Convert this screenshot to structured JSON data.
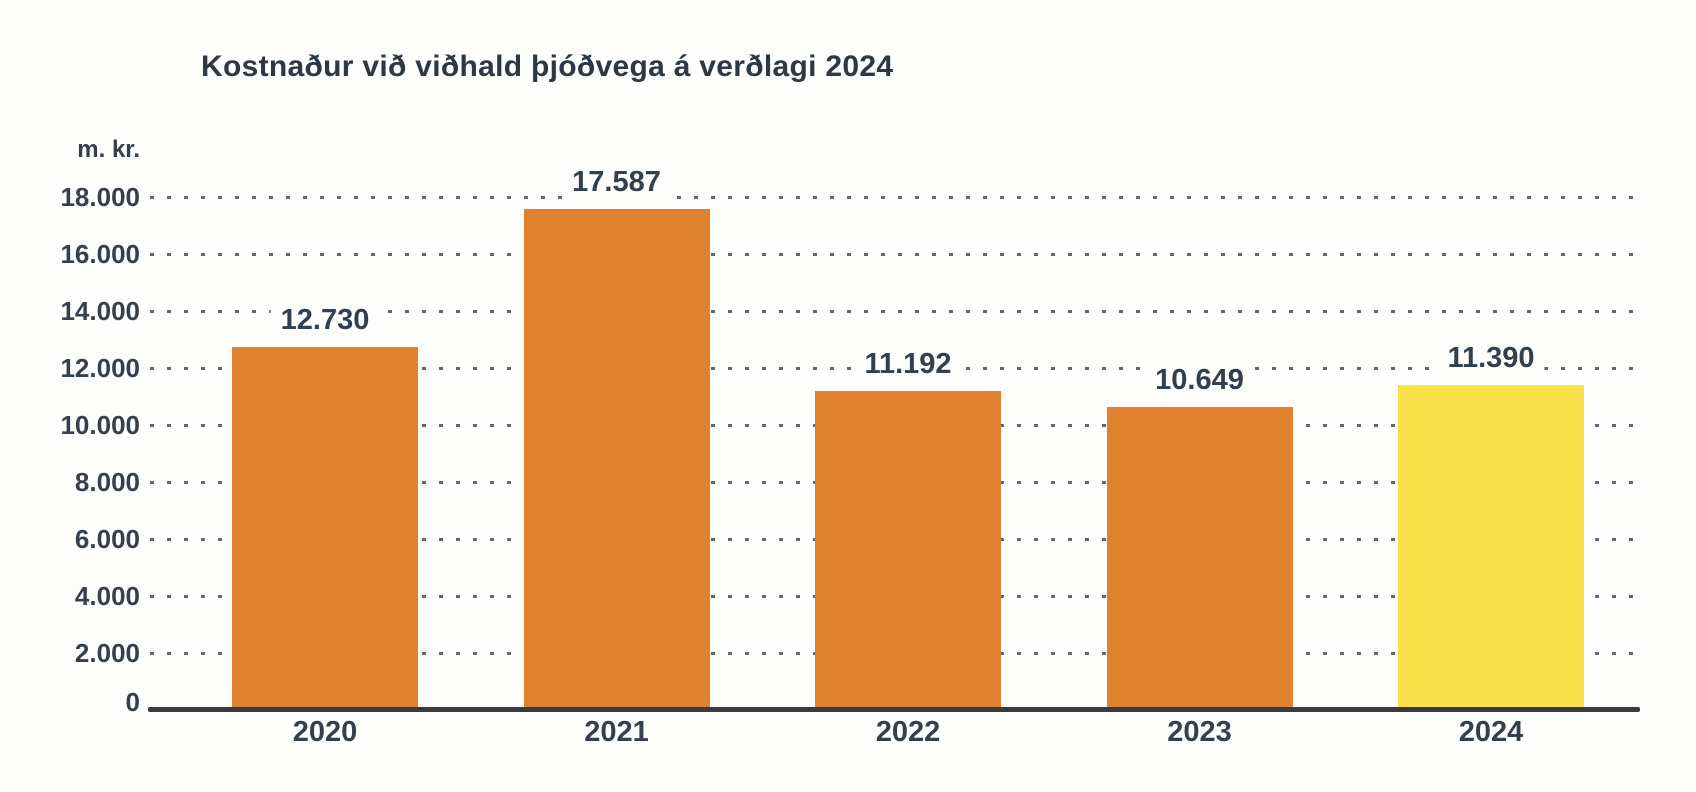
{
  "header": {
    "title": "Kostnaður við viðhald þjóðvega á verðlagi 2024"
  },
  "axis": {
    "unit_label": "m. kr."
  },
  "chart_data": {
    "type": "bar",
    "title": "Kostnaður við viðhald þjóðvega á verðlagi 2024",
    "ylabel": "m. kr.",
    "xlabel": "",
    "categories": [
      "2020",
      "2021",
      "2022",
      "2023",
      "2024"
    ],
    "values": [
      12730,
      17587,
      11192,
      10649,
      11390
    ],
    "value_labels": [
      "12.730",
      "17.587",
      "11.192",
      "10.649",
      "11.390"
    ],
    "bar_colors": [
      "#E0812D",
      "#E0812D",
      "#E0812D",
      "#E0812D",
      "#F8E14B"
    ],
    "highlight_category": "2024",
    "ylim": [
      0,
      18000
    ],
    "yticks": [
      0,
      2000,
      4000,
      6000,
      8000,
      10000,
      12000,
      14000,
      16000,
      18000
    ],
    "ytick_labels": [
      "0",
      "2.000",
      "4.000",
      "6.000",
      "8.000",
      "10.000",
      "12.000",
      "14.000",
      "16.000",
      "18.000"
    ],
    "grid": "horizontal-dotted",
    "legend": "none"
  },
  "colors": {
    "background": "#FDFDFC",
    "bar_orange": "#E0812D",
    "bar_yellow": "#F8E14B",
    "title_text": "#2D3843",
    "tick_text": "#36404C",
    "value_text": "#32404E",
    "gridline": "#4B4B4B",
    "axis_line": "#3A3A3C"
  }
}
